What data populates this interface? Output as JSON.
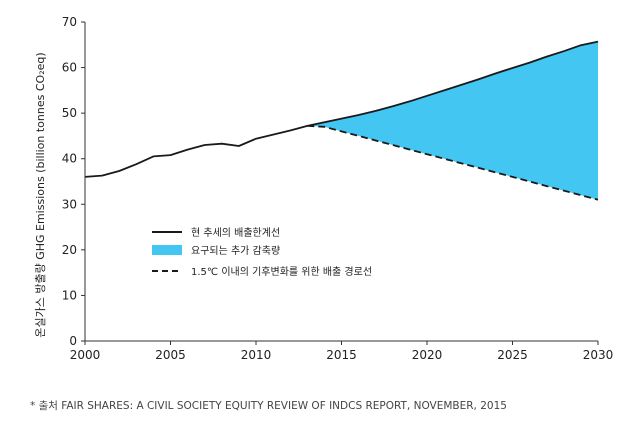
{
  "chart_data": {
    "type": "line",
    "ylabel": "온실가스 방출량 GHG Emissions (billion tonnes CO₂eq)",
    "xlim": [
      2000,
      2030
    ],
    "ylim": [
      0,
      70
    ],
    "x_ticks": [
      2000,
      2005,
      2010,
      2015,
      2020,
      2025,
      2030
    ],
    "y_ticks": [
      0,
      10,
      20,
      30,
      40,
      50,
      60,
      70
    ],
    "grid": false,
    "legend_position": "center-left",
    "series": [
      {
        "name": "현 추세의 배출한계선",
        "style": "solid",
        "color": "#1a1a1a",
        "x": [
          2000,
          2001,
          2002,
          2003,
          2004,
          2005,
          2006,
          2007,
          2008,
          2009,
          2010,
          2011,
          2012,
          2013,
          2014,
          2015,
          2016,
          2017,
          2018,
          2019,
          2020,
          2021,
          2022,
          2023,
          2024,
          2025,
          2026,
          2027,
          2028,
          2029,
          2030
        ],
        "values": [
          36.0,
          36.3,
          37.3,
          38.8,
          40.5,
          40.8,
          42.0,
          43.0,
          43.3,
          42.8,
          44.4,
          45.3,
          46.2,
          47.2,
          48.0,
          48.8,
          49.6,
          50.5,
          51.5,
          52.6,
          53.8,
          55.0,
          56.2,
          57.4,
          58.7,
          59.9,
          61.1,
          62.4,
          63.6,
          64.9,
          65.7
        ]
      },
      {
        "name": "1.5℃ 이내의 기후변화를 위한 배출 경로선",
        "style": "dashed",
        "color": "#1a1a1a",
        "x": [
          2013,
          2014,
          2015,
          2016,
          2017,
          2018,
          2019,
          2020,
          2021,
          2022,
          2023,
          2024,
          2025,
          2026,
          2027,
          2028,
          2029,
          2030
        ],
        "values": [
          47.2,
          47.0,
          46.0,
          45.0,
          44.0,
          43.0,
          42.0,
          41.0,
          40.0,
          39.0,
          38.0,
          37.0,
          36.0,
          35.0,
          34.0,
          33.0,
          32.0,
          31.0
        ]
      }
    ],
    "area": {
      "name": "요구되는 추가 감축량",
      "color": "#43c6f2",
      "description": "filled region between the current-trend line and the 1.5℃ pathway from 2013 to 2030"
    },
    "legend": [
      {
        "label": "현 추세의 배출한계선",
        "type": "solid-line"
      },
      {
        "label": "요구되는 추가 감축량",
        "type": "area"
      },
      {
        "label": "1.5℃ 이내의 기후변화를 위한 배출 경로선",
        "type": "dashed-line"
      }
    ]
  },
  "source_note": "* 출처 FAIR SHARES: A CIVIL SOCIETY EQUITY REVIEW OF INDCS REPORT, NOVEMBER, 2015"
}
